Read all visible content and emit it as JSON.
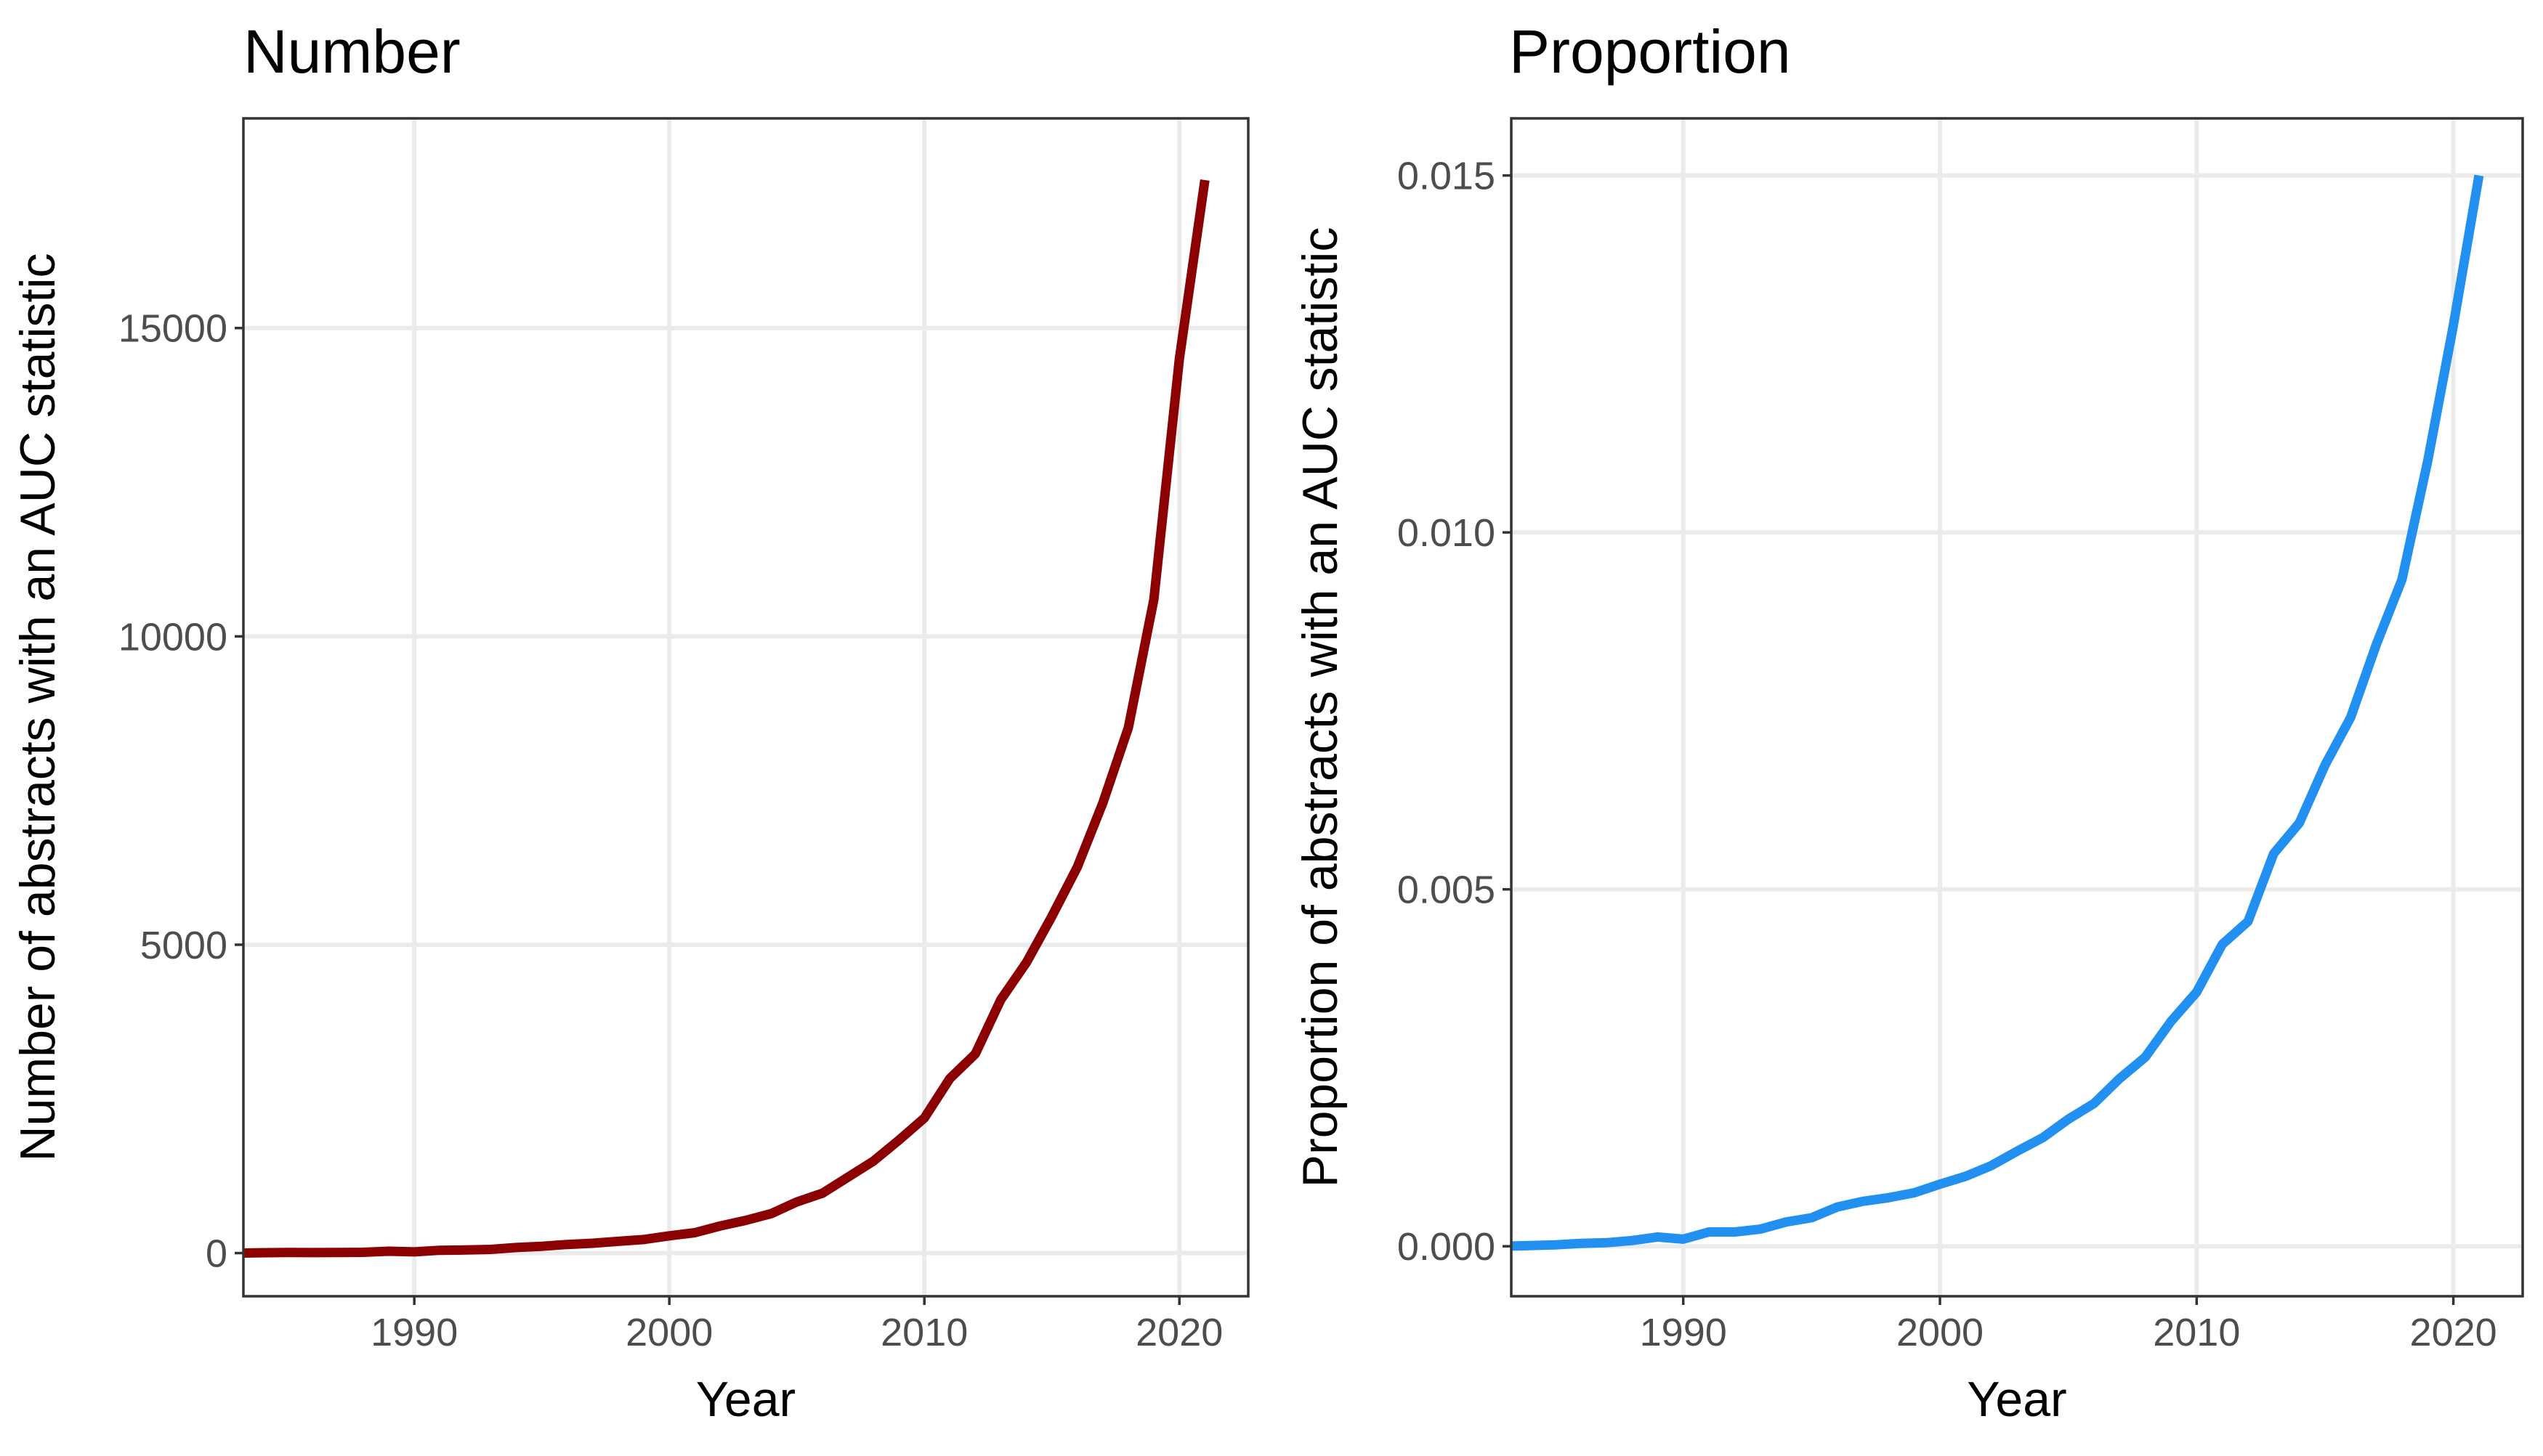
{
  "chart_data": [
    {
      "type": "line",
      "title": "Number",
      "xlabel": "Year",
      "ylabel": "Number of abstracts with an AUC statistic",
      "xlim": [
        1983.3,
        2022.7
      ],
      "ylim": [
        -700,
        18400
      ],
      "x_ticks": [
        1990,
        2000,
        2010,
        2020
      ],
      "x_tick_labels": [
        "1990",
        "2000",
        "2010",
        "2020"
      ],
      "y_ticks": [
        0,
        5000,
        10000,
        15000
      ],
      "y_tick_labels": [
        "0",
        "5000",
        "10000",
        "15000"
      ],
      "grid": true,
      "legend": "none",
      "color": "#8B0000",
      "series": [
        {
          "x": [
            1983,
            1984,
            1985,
            1986,
            1987,
            1988,
            1989,
            1990,
            1991,
            1992,
            1993,
            1994,
            1995,
            1996,
            1997,
            1998,
            1999,
            2000,
            2001,
            2002,
            2003,
            2004,
            2005,
            2006,
            2007,
            2008,
            2009,
            2010,
            2011,
            2012,
            2013,
            2014,
            2015,
            2016,
            2017,
            2018,
            2019,
            2020,
            2021
          ],
          "values": [
            0,
            5,
            10,
            8,
            10,
            12,
            30,
            20,
            45,
            50,
            60,
            90,
            110,
            140,
            160,
            190,
            220,
            280,
            330,
            440,
            530,
            640,
            830,
            970,
            1230,
            1490,
            1830,
            2190,
            2830,
            3230,
            4110,
            4710,
            5460,
            6260,
            7300,
            8520,
            10600,
            14500,
            17400
          ]
        }
      ]
    },
    {
      "type": "line",
      "title": "Proportion",
      "xlabel": "Year",
      "ylabel": "Proportion of abstracts with an AUC statistic",
      "xlim": [
        1983.3,
        2022.7
      ],
      "ylim": [
        -0.0007,
        0.0158
      ],
      "x_ticks": [
        1990,
        2000,
        2010,
        2020
      ],
      "x_tick_labels": [
        "1990",
        "2000",
        "2010",
        "2020"
      ],
      "y_ticks": [
        0,
        0.005,
        0.01,
        0.015
      ],
      "y_tick_labels": [
        "0.000",
        "0.005",
        "0.010",
        "0.015"
      ],
      "grid": true,
      "legend": "none",
      "color": "#2290F0",
      "series": [
        {
          "x": [
            1983,
            1984,
            1985,
            1986,
            1987,
            1988,
            1989,
            1990,
            1991,
            1992,
            1993,
            1994,
            1995,
            1996,
            1997,
            1998,
            1999,
            2000,
            2001,
            2002,
            2003,
            2004,
            2005,
            2006,
            2007,
            2008,
            2009,
            2010,
            2011,
            2012,
            2013,
            2014,
            2015,
            2016,
            2017,
            2018,
            2019,
            2020,
            2021
          ],
          "values": [
            0,
            1e-05,
            2e-05,
            4e-05,
            5e-05,
            8e-05,
            0.00013,
            0.0001,
            0.0002,
            0.0002,
            0.00024,
            0.00034,
            0.0004,
            0.00055,
            0.00063,
            0.00068,
            0.00075,
            0.00087,
            0.00098,
            0.00113,
            0.00133,
            0.00152,
            0.00178,
            0.002,
            0.00235,
            0.00265,
            0.00315,
            0.00356,
            0.00423,
            0.00455,
            0.0055,
            0.00593,
            0.00674,
            0.00741,
            0.00843,
            0.00934,
            0.011,
            0.0129,
            0.015
          ]
        }
      ]
    }
  ]
}
